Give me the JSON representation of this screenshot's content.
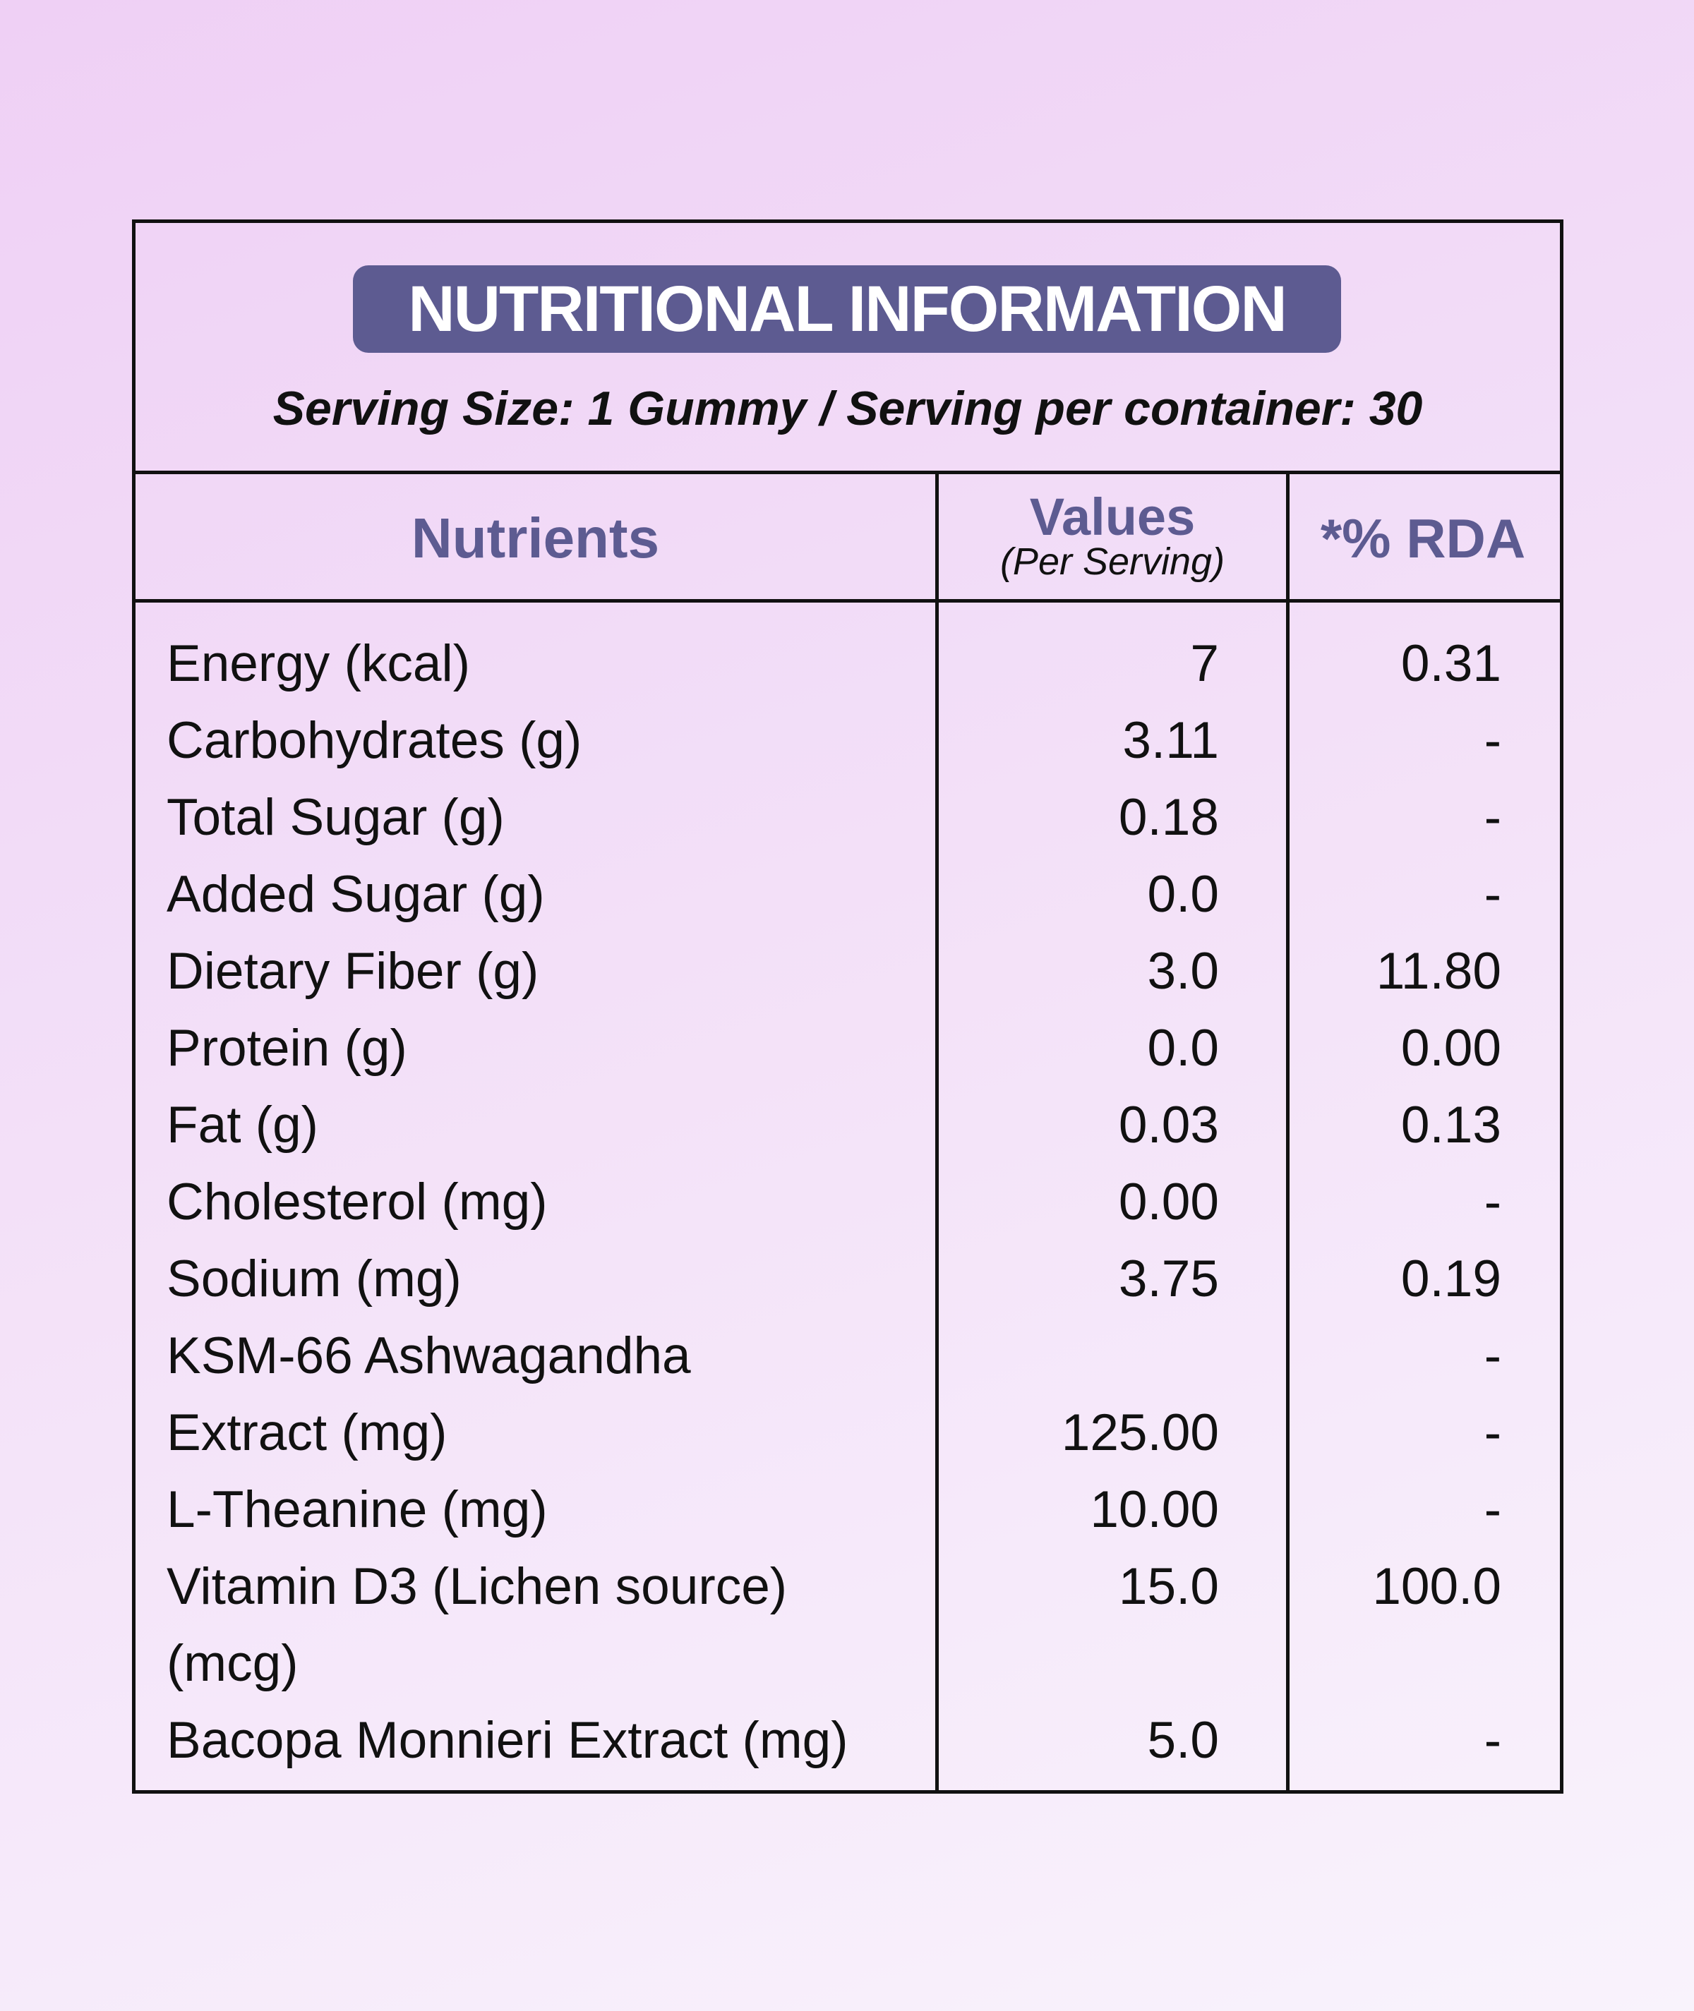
{
  "header": {
    "title": "NUTRITIONAL INFORMATION",
    "serving": "Serving Size: 1 Gummy / Serving per container: 30"
  },
  "table": {
    "columns": {
      "nutrients": "Nutrients",
      "values": "Values",
      "values_note": "(Per Serving)",
      "rda": "*% RDA"
    },
    "rows": [
      {
        "nutrient": "Energy (kcal)",
        "value": "7",
        "rda": "0.31"
      },
      {
        "nutrient": "Carbohydrates (g)",
        "value": "3.11",
        "rda": "-"
      },
      {
        "nutrient": "Total Sugar (g)",
        "value": "0.18",
        "rda": "-"
      },
      {
        "nutrient": "Added Sugar (g)",
        "value": "0.0",
        "rda": "-"
      },
      {
        "nutrient": "Dietary Fiber (g)",
        "value": "3.0",
        "rda": "11.80"
      },
      {
        "nutrient": "Protein (g)",
        "value": "0.0",
        "rda": "0.00"
      },
      {
        "nutrient": "Fat (g)",
        "value": "0.03",
        "rda": "0.13"
      },
      {
        "nutrient": "Cholesterol (mg)",
        "value": "0.00",
        "rda": "-"
      },
      {
        "nutrient": "Sodium (mg)",
        "value": "3.75",
        "rda": "0.19"
      },
      {
        "nutrient": "KSM-66 Ashwagandha",
        "rda": "-"
      },
      {
        "nutrient": "Extract (mg)",
        "value": "125.00",
        "rda": "-"
      },
      {
        "nutrient": "L-Theanine (mg)",
        "value": "10.00",
        "rda": "-"
      },
      {
        "nutrient": "Vitamin D3 (Lichen source) (mcg)",
        "value": "15.0",
        "rda": "100.0"
      },
      {
        "nutrient": "Bacopa Monnieri Extract (mg)",
        "value": "5.0",
        "rda": "-"
      }
    ]
  }
}
